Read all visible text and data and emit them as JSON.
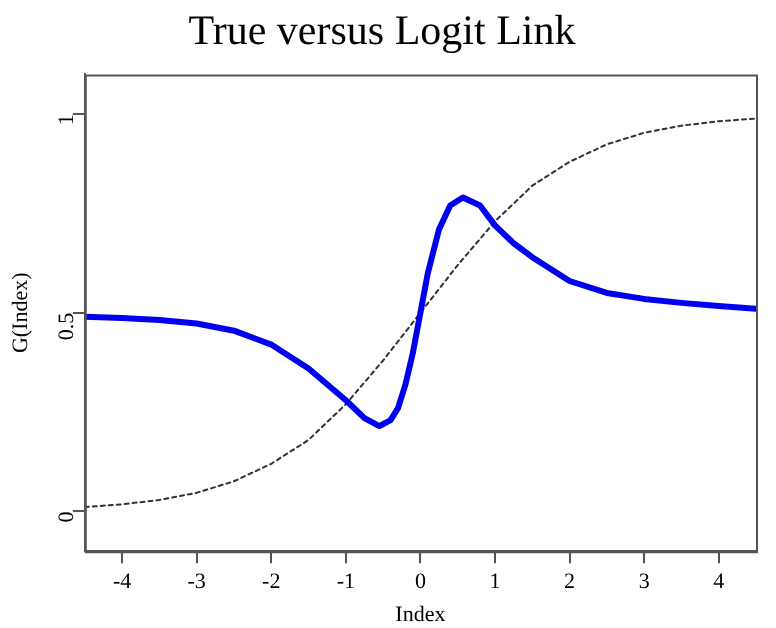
{
  "chart_data": {
    "type": "line",
    "title": "True versus Logit Link",
    "xlabel": "Index",
    "ylabel": "G(Index)",
    "xlim": [
      -4.5,
      4.5
    ],
    "xticks": [
      -4,
      -3,
      -2,
      -1,
      0,
      1,
      2,
      3,
      4
    ],
    "ylim": [
      -0.1,
      1.1
    ],
    "yticks": [
      0,
      0.5,
      1
    ],
    "grid": false,
    "legend": false,
    "marker": "none",
    "series": [
      {
        "color": "#0000ee",
        "line_style": "solid",
        "x": [
          -4.5,
          -4,
          -3.5,
          -3,
          -2.5,
          -2,
          -1.5,
          -1,
          -0.75,
          -0.55,
          -0.4,
          -0.3,
          -0.2,
          -0.1,
          0,
          0.1,
          0.25,
          0.4,
          0.57,
          0.8,
          1,
          1.25,
          1.5,
          2,
          2.5,
          3,
          3.5,
          4,
          4.5
        ],
        "values": [
          0.49,
          0.487,
          0.482,
          0.473,
          0.455,
          0.42,
          0.36,
          0.28,
          0.235,
          0.215,
          0.23,
          0.26,
          0.32,
          0.4,
          0.5,
          0.6,
          0.71,
          0.77,
          0.79,
          0.77,
          0.72,
          0.675,
          0.64,
          0.58,
          0.55,
          0.535,
          0.525,
          0.517,
          0.51
        ]
      },
      {
        "color": "#333333",
        "line_style": "dotted",
        "x": [
          -4.5,
          -4,
          -3.5,
          -3,
          -2.5,
          -2,
          -1.5,
          -1,
          -0.5,
          0,
          0.5,
          1,
          1.5,
          2,
          2.5,
          3,
          3.5,
          4,
          4.5
        ],
        "values": [
          0.011,
          0.018,
          0.029,
          0.047,
          0.076,
          0.12,
          0.18,
          0.27,
          0.38,
          0.5,
          0.62,
          0.73,
          0.82,
          0.88,
          0.924,
          0.953,
          0.971,
          0.982,
          0.989
        ]
      }
    ]
  }
}
